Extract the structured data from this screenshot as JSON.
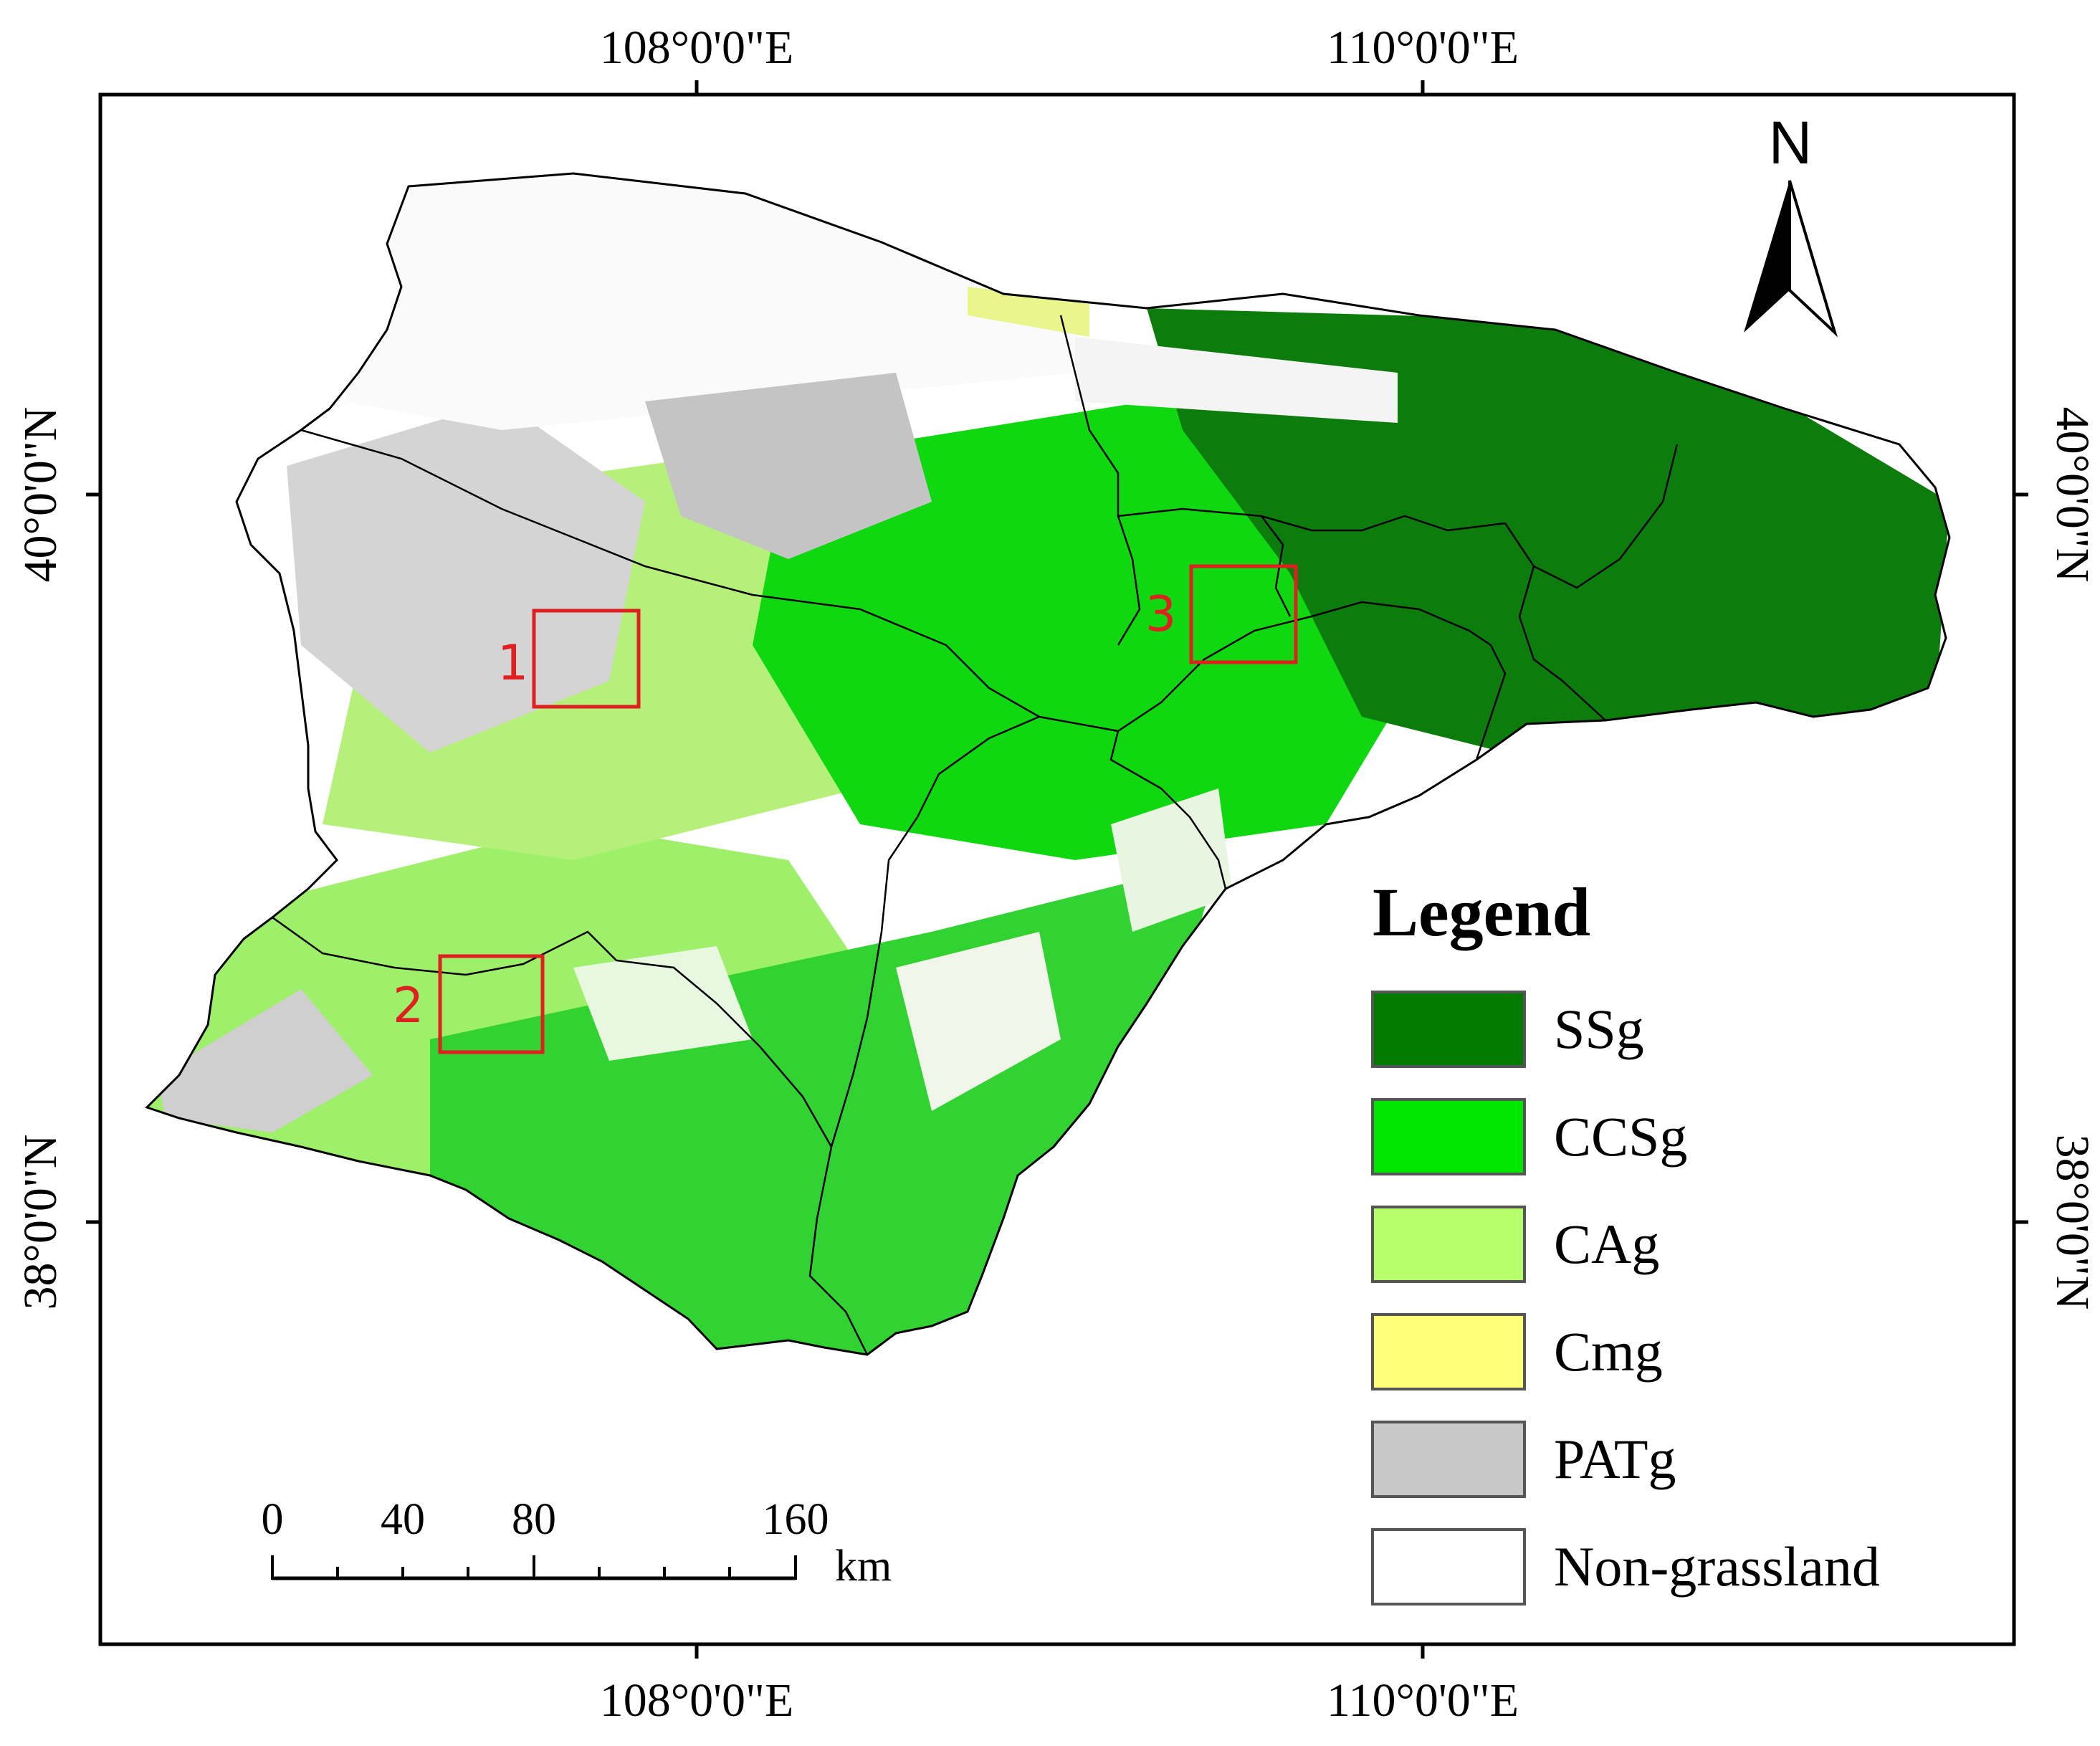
{
  "graticule": {
    "top_labels": [
      "108°0'0\"E",
      "110°0'0\"E"
    ],
    "bottom_labels": [
      "108°0'0\"E",
      "110°0'0\"E"
    ],
    "left_labels": [
      "40°0'0\"N",
      "38°0'0\"N"
    ],
    "right_labels": [
      "40°0'0\"N",
      "38°0'0\"N"
    ]
  },
  "north_arrow": {
    "label": "N"
  },
  "study_areas": [
    {
      "label": "1"
    },
    {
      "label": "2"
    },
    {
      "label": "3"
    }
  ],
  "legend": {
    "title": "Legend",
    "items": [
      {
        "label": "SSg",
        "color": "#007a00"
      },
      {
        "label": "CCSg",
        "color": "#00e600"
      },
      {
        "label": "CAg",
        "color": "#b4ff6a"
      },
      {
        "label": "Cmg",
        "color": "#ffff78"
      },
      {
        "label": "PATg",
        "color": "#c8c8c8"
      },
      {
        "label": "Non-grassland",
        "color": "#ffffff"
      }
    ]
  },
  "scale_bar": {
    "ticks": [
      "0",
      "40",
      "80",
      "160"
    ],
    "unit": "km"
  },
  "colors": {
    "marker": "#e02020",
    "boundary": "#000000",
    "frame": "#000000"
  }
}
